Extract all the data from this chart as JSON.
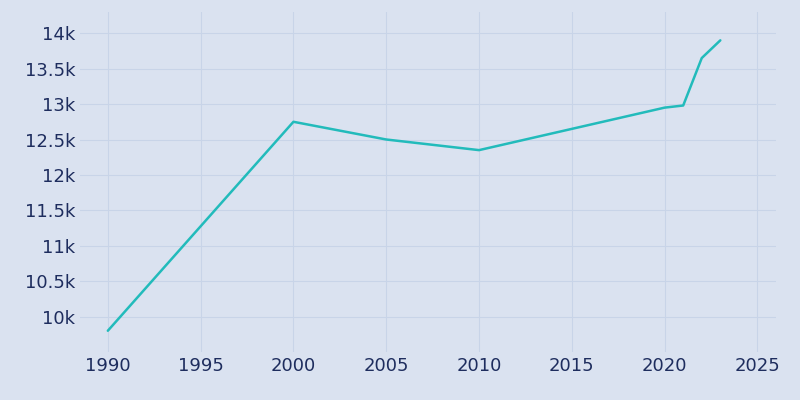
{
  "years": [
    1990,
    2000,
    2005,
    2010,
    2020,
    2021,
    2022,
    2023
  ],
  "population": [
    9800,
    12750,
    12500,
    12350,
    12950,
    12980,
    13650,
    13900
  ],
  "line_color": "#22BBBB",
  "bg_color": "#dae2f0",
  "plot_bg_color": "#dae2f0",
  "grid_color": "#c8d4e8",
  "tick_label_color": "#1e2d5e",
  "xlim": [
    1988.5,
    2026
  ],
  "ylim": [
    9500,
    14300
  ],
  "yticks": [
    10000,
    10500,
    11000,
    11500,
    12000,
    12500,
    13000,
    13500,
    14000
  ],
  "xticks": [
    1990,
    1995,
    2000,
    2005,
    2010,
    2015,
    2020,
    2025
  ],
  "tick_fontsize": 13
}
